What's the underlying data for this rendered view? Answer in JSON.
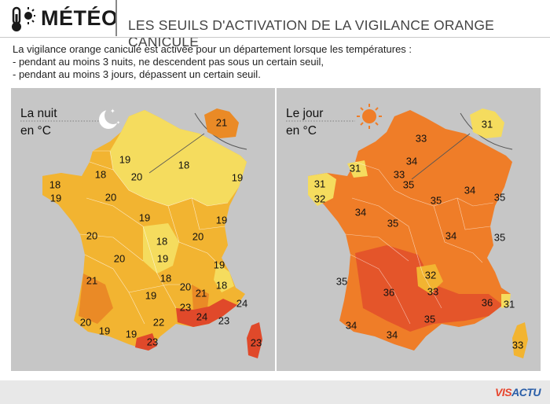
{
  "header": {
    "brand": "MÉTÉO",
    "title": "LES SEUILS D'ACTIVATION DE LA VIGILANCE ORANGE CANICULE",
    "icon": "thermometer-sun-icon"
  },
  "intro": {
    "line1": "La vigilance orange canicule est activée pour un département lorsque les températures :",
    "line2": "- pendant au moins 3 nuits, ne descendent pas sous un certain seuil,",
    "line3": "- pendant au moins 3 jours, dépassent un certain seuil."
  },
  "maps": [
    {
      "title": "La nuit",
      "unit": "en °C",
      "icon": "moon-stars-icon",
      "inset_value": "21",
      "labels": [
        "21",
        "19",
        "18",
        "20",
        "18",
        "19",
        "18",
        "19",
        "20",
        "19",
        "20",
        "20",
        "18",
        "19",
        "20",
        "19",
        "21",
        "18",
        "20",
        "18",
        "19",
        "19",
        "21",
        "24",
        "20",
        "19",
        "19",
        "23",
        "22",
        "23",
        "24",
        "23",
        "23"
      ]
    },
    {
      "title": "Le jour",
      "unit": "en °C",
      "icon": "sun-icon",
      "inset_value": "31",
      "labels": [
        "31",
        "33",
        "31",
        "34",
        "33",
        "35",
        "31",
        "32",
        "34",
        "34",
        "35",
        "35",
        "35",
        "34",
        "35",
        "32",
        "36",
        "33",
        "36",
        "31",
        "34",
        "35",
        "34",
        "33"
      ]
    }
  ],
  "footer": {
    "brand_part1": "VIS",
    "brand_part2": "ACTU"
  },
  "colors": {
    "night_light": "#f5dc5e",
    "night_mid": "#f2b431",
    "night_dark": "#ea8a26",
    "night_red": "#e0492a",
    "day_mid": "#ef7d28",
    "day_dark": "#e4552a",
    "panel_bg": "#c6c6c6"
  }
}
